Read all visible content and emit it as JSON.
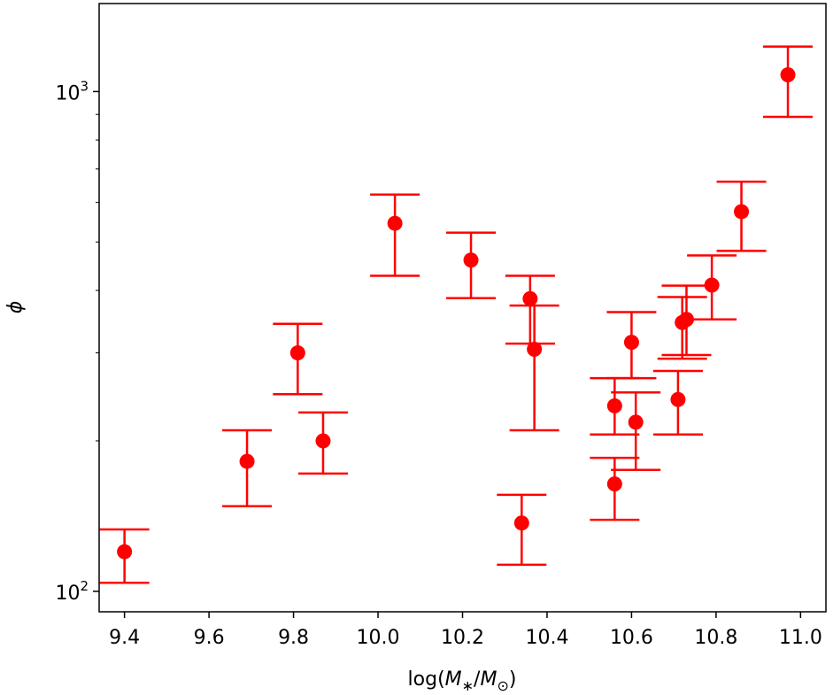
{
  "chart_data": {
    "type": "scatter",
    "title": "",
    "xlabel": "log(M∗/M⊙)",
    "ylabel": "ϕ",
    "x_scale": "linear",
    "y_scale": "log",
    "xlim": [
      9.34,
      11.06
    ],
    "ylim": [
      91,
      1500
    ],
    "x_ticks": [
      9.4,
      9.6,
      9.8,
      10.0,
      10.2,
      10.4,
      10.6,
      10.8,
      11.0
    ],
    "x_tick_labels": [
      "9.4",
      "9.6",
      "9.8",
      "10.0",
      "10.2",
      "10.4",
      "10.6",
      "10.8",
      "11.0"
    ],
    "y_ticks": [
      {
        "value": 100,
        "base": "10",
        "exp": "2"
      },
      {
        "value": 1000,
        "base": "10",
        "exp": "3"
      }
    ],
    "y_minor_ticks": [
      200,
      300,
      400,
      500,
      600,
      700,
      800,
      900
    ],
    "grid": false,
    "legend": "none",
    "series": [
      {
        "color": "#ff0000",
        "points": [
          {
            "x": 9.4,
            "y": 120,
            "lo": 104,
            "hi": 133
          },
          {
            "x": 9.69,
            "y": 182,
            "lo": 148,
            "hi": 210
          },
          {
            "x": 9.81,
            "y": 300,
            "lo": 248,
            "hi": 343
          },
          {
            "x": 9.87,
            "y": 200,
            "lo": 172,
            "hi": 228
          },
          {
            "x": 10.04,
            "y": 545,
            "lo": 428,
            "hi": 622
          },
          {
            "x": 10.22,
            "y": 460,
            "lo": 386,
            "hi": 522
          },
          {
            "x": 10.34,
            "y": 137,
            "lo": 113,
            "hi": 156
          },
          {
            "x": 10.36,
            "y": 385,
            "lo": 313,
            "hi": 428
          },
          {
            "x": 10.37,
            "y": 305,
            "lo": 210,
            "hi": 373
          },
          {
            "x": 10.56,
            "y": 235,
            "lo": 206,
            "hi": 267
          },
          {
            "x": 10.56,
            "y": 164,
            "lo": 139,
            "hi": 185
          },
          {
            "x": 10.6,
            "y": 315,
            "lo": 267,
            "hi": 362
          },
          {
            "x": 10.61,
            "y": 218,
            "lo": 175,
            "hi": 250
          },
          {
            "x": 10.71,
            "y": 242,
            "lo": 206,
            "hi": 276
          },
          {
            "x": 10.72,
            "y": 345,
            "lo": 292,
            "hi": 388
          },
          {
            "x": 10.73,
            "y": 350,
            "lo": 297,
            "hi": 409
          },
          {
            "x": 10.79,
            "y": 410,
            "lo": 350,
            "hi": 470
          },
          {
            "x": 10.86,
            "y": 575,
            "lo": 480,
            "hi": 660
          },
          {
            "x": 10.97,
            "y": 1080,
            "lo": 890,
            "hi": 1230
          }
        ]
      }
    ]
  }
}
